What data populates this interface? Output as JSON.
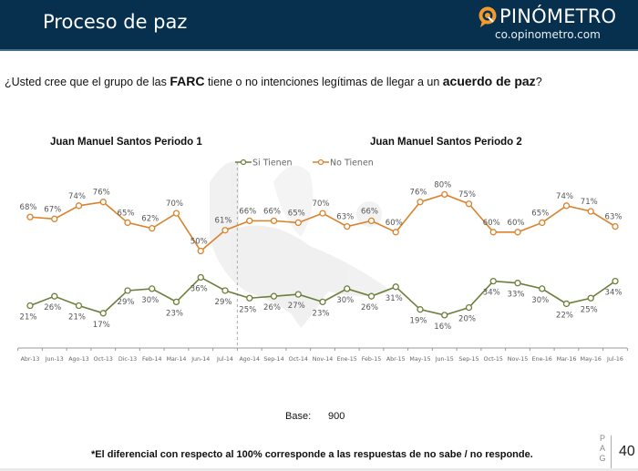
{
  "header": {
    "title": "Proceso de paz",
    "logo_name": "PINÓMETRO",
    "logo_url": "co.opinometro.com",
    "brand_color": "#07304f",
    "logo_accent": "#f29a2e"
  },
  "question": {
    "part1": "¿Usted cree que el grupo de las ",
    "bold1": "FARC",
    "part2": " tiene o no intenciones legítimas de llegar a un ",
    "bold2": "acuerdo de paz",
    "part3": "?"
  },
  "periods": {
    "p1": "Juan Manuel Santos Periodo 1",
    "p2": "Juan Manuel Santos Periodo 2"
  },
  "chart_data": {
    "type": "line",
    "title": "",
    "xlabel": "",
    "ylabel": "",
    "ylim": [
      0,
      100
    ],
    "grid": false,
    "legend": "top-center",
    "period_divider_after": "Jul-14",
    "categories": [
      "Abr-13",
      "Jun-13",
      "Ago-13",
      "Oct-13",
      "Dic-13",
      "Feb-14",
      "Mar-14",
      "Jun-14",
      "Jul-14",
      "Ago-14",
      "Sep-14",
      "Oct-14",
      "Nov-14",
      "Ene-15",
      "Feb-15",
      "Abr-15",
      "May-15",
      "Jun-15",
      "Sep-15",
      "Oct-15",
      "Nov-15",
      "Ene-16",
      "Mar-16",
      "May-16",
      "Jul-16"
    ],
    "series": [
      {
        "name": "Si Tienen",
        "color": "#6b7f3a",
        "label_pos": "below",
        "values": [
          21,
          26,
          21,
          17,
          29,
          30,
          23,
          36,
          29,
          25,
          26,
          27,
          23,
          30,
          26,
          31,
          19,
          16,
          20,
          34,
          33,
          30,
          22,
          25,
          34
        ]
      },
      {
        "name": "No Tienen",
        "color": "#d9822b",
        "label_pos": "above",
        "values": [
          68,
          67,
          74,
          76,
          65,
          62,
          70,
          50,
          61,
          66,
          66,
          65,
          70,
          63,
          66,
          60,
          76,
          80,
          75,
          60,
          60,
          65,
          74,
          71,
          63
        ]
      }
    ]
  },
  "footer": {
    "base_label": "Base:",
    "base_value": "900",
    "footnote": "*El diferencial con respecto al 100% corresponde a las respuestas de no sabe / no responde.",
    "pag_letters": "P A G",
    "page_number": "40"
  }
}
